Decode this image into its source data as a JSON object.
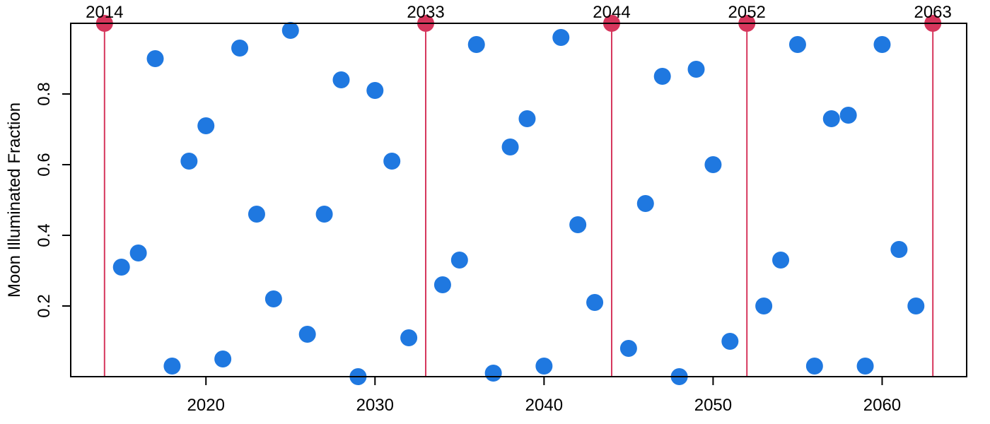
{
  "chart_data": {
    "type": "scatter",
    "title": "",
    "xlabel": "",
    "ylabel": "Moon Illuminated Fraction",
    "xlim": [
      2012,
      2065
    ],
    "ylim": [
      0,
      1
    ],
    "x_ticks": [
      2020,
      2030,
      2040,
      2050,
      2060
    ],
    "y_ticks": [
      0.2,
      0.4,
      0.6,
      0.8
    ],
    "grid": false,
    "legend": "none",
    "series": [
      {
        "color": "#1f78e0",
        "x": [
          2015,
          2016,
          2017,
          2018,
          2019,
          2020,
          2021,
          2022,
          2023,
          2024,
          2025,
          2026,
          2027,
          2028,
          2029,
          2030,
          2031,
          2032,
          2034,
          2035,
          2036,
          2037,
          2038,
          2039,
          2040,
          2041,
          2042,
          2043,
          2045,
          2046,
          2047,
          2048,
          2049,
          2050,
          2051,
          2053,
          2054,
          2055,
          2056,
          2057,
          2058,
          2059,
          2060,
          2061,
          2062
        ],
        "y": [
          0.31,
          0.35,
          0.9,
          0.03,
          0.61,
          0.71,
          0.05,
          0.93,
          0.46,
          0.22,
          0.98,
          0.12,
          0.46,
          0.84,
          0.0,
          0.81,
          0.61,
          0.11,
          0.26,
          0.33,
          0.94,
          0.01,
          0.65,
          0.73,
          0.03,
          0.96,
          0.43,
          0.21,
          0.08,
          0.49,
          0.85,
          0.0,
          0.87,
          0.6,
          0.1,
          0.2,
          0.33,
          0.94,
          0.03,
          0.73,
          0.74,
          0.03,
          0.94,
          0.36,
          0.2
        ]
      },
      {
        "color": "#d6365c",
        "x": [
          2014,
          2033,
          2044,
          2052,
          2063
        ],
        "y": [
          1.0,
          1.0,
          1.0,
          1.0,
          1.0
        ],
        "point_labels": [
          "2014",
          "2033",
          "2044",
          "2052",
          "2063"
        ]
      }
    ]
  }
}
